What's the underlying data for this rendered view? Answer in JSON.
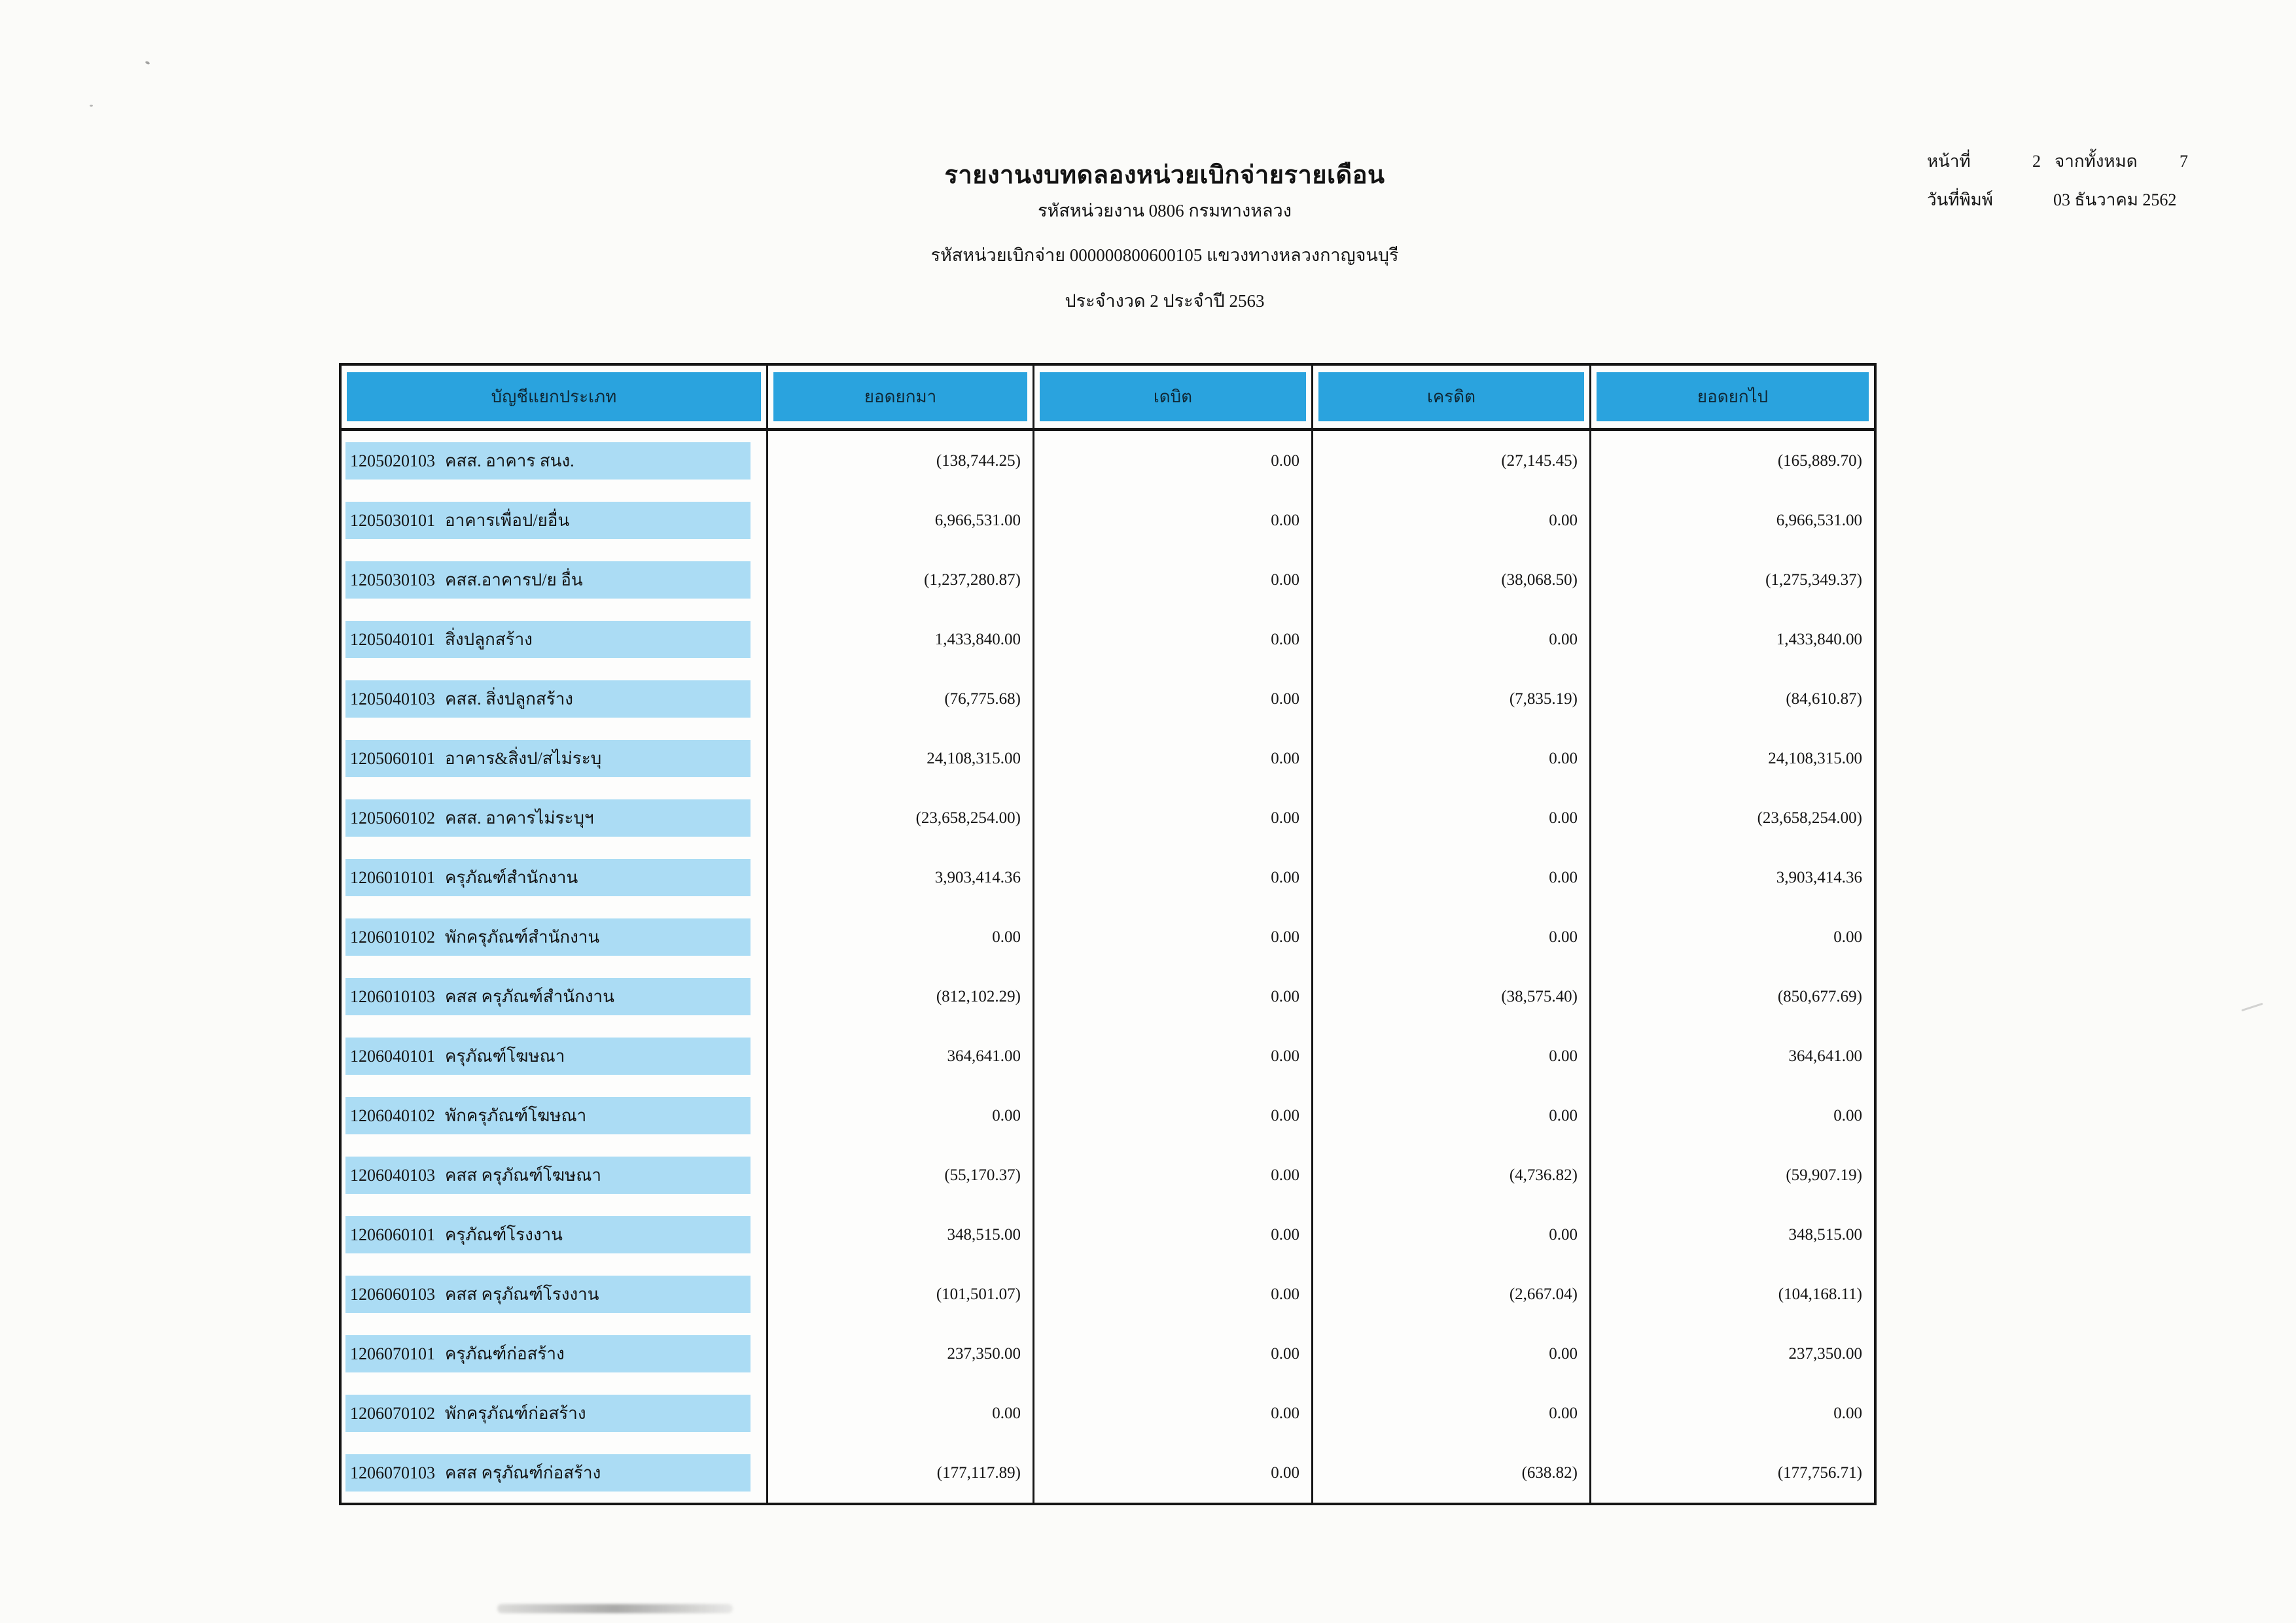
{
  "page": {
    "title": "รายงานงบทดลองหน่วยเบิกจ่ายรายเดือน",
    "agency_line": "รหัสหน่วยงาน 0806 กรมทางหลวง",
    "unit_line": "รหัสหน่วยเบิกจ่าย 000000800600105 แขวงทางหลวงกาญจนบุรี",
    "period_line": "ประจำงวด 2 ประจำปี 2563"
  },
  "meta": {
    "page_label": "หน้าที่",
    "page_number": "2",
    "of_label": "จากทั้งหมด",
    "total_pages": "7",
    "print_date_label": "วันที่พิมพ์",
    "print_date": "03 ธันวาคม 2562"
  },
  "table": {
    "columns": [
      "บัญชีแยกประเภท",
      "ยอดยกมา",
      "เดบิต",
      "เครดิต",
      "ยอดยกไป"
    ],
    "rows": [
      {
        "code": "1205020103",
        "name": "คสส. อาคาร สนง.",
        "opening": "(138,744.25)",
        "debit": "0.00",
        "credit": "(27,145.45)",
        "closing": "(165,889.70)"
      },
      {
        "code": "1205030101",
        "name": "อาคารเพื่อป/ยอื่น",
        "opening": "6,966,531.00",
        "debit": "0.00",
        "credit": "0.00",
        "closing": "6,966,531.00"
      },
      {
        "code": "1205030103",
        "name": "คสส.อาคารป/ย อื่น",
        "opening": "(1,237,280.87)",
        "debit": "0.00",
        "credit": "(38,068.50)",
        "closing": "(1,275,349.37)"
      },
      {
        "code": "1205040101",
        "name": "สิ่งปลูกสร้าง",
        "opening": "1,433,840.00",
        "debit": "0.00",
        "credit": "0.00",
        "closing": "1,433,840.00"
      },
      {
        "code": "1205040103",
        "name": "คสส. สิ่งปลูกสร้าง",
        "opening": "(76,775.68)",
        "debit": "0.00",
        "credit": "(7,835.19)",
        "closing": "(84,610.87)"
      },
      {
        "code": "1205060101",
        "name": "อาคาร&สิ่งป/สไม่ระบุ",
        "opening": "24,108,315.00",
        "debit": "0.00",
        "credit": "0.00",
        "closing": "24,108,315.00"
      },
      {
        "code": "1205060102",
        "name": "คสส. อาคารไม่ระบุฯ",
        "opening": "(23,658,254.00)",
        "debit": "0.00",
        "credit": "0.00",
        "closing": "(23,658,254.00)"
      },
      {
        "code": "1206010101",
        "name": "ครุภัณฑ์สำนักงาน",
        "opening": "3,903,414.36",
        "debit": "0.00",
        "credit": "0.00",
        "closing": "3,903,414.36"
      },
      {
        "code": "1206010102",
        "name": "พักครุภัณฑ์สำนักงาน",
        "opening": "0.00",
        "debit": "0.00",
        "credit": "0.00",
        "closing": "0.00"
      },
      {
        "code": "1206010103",
        "name": "คสส ครุภัณฑ์สำนักงาน",
        "opening": "(812,102.29)",
        "debit": "0.00",
        "credit": "(38,575.40)",
        "closing": "(850,677.69)"
      },
      {
        "code": "1206040101",
        "name": "ครุภัณฑ์โฆษณา",
        "opening": "364,641.00",
        "debit": "0.00",
        "credit": "0.00",
        "closing": "364,641.00"
      },
      {
        "code": "1206040102",
        "name": "พักครุภัณฑ์โฆษณา",
        "opening": "0.00",
        "debit": "0.00",
        "credit": "0.00",
        "closing": "0.00"
      },
      {
        "code": "1206040103",
        "name": "คสส ครุภัณฑ์โฆษณา",
        "opening": "(55,170.37)",
        "debit": "0.00",
        "credit": "(4,736.82)",
        "closing": "(59,907.19)"
      },
      {
        "code": "1206060101",
        "name": "ครุภัณฑ์โรงงาน",
        "opening": "348,515.00",
        "debit": "0.00",
        "credit": "0.00",
        "closing": "348,515.00"
      },
      {
        "code": "1206060103",
        "name": "คสส ครุภัณฑ์โรงงาน",
        "opening": "(101,501.07)",
        "debit": "0.00",
        "credit": "(2,667.04)",
        "closing": "(104,168.11)"
      },
      {
        "code": "1206070101",
        "name": "ครุภัณฑ์ก่อสร้าง",
        "opening": "237,350.00",
        "debit": "0.00",
        "credit": "0.00",
        "closing": "237,350.00"
      },
      {
        "code": "1206070102",
        "name": "พักครุภัณฑ์ก่อสร้าง",
        "opening": "0.00",
        "debit": "0.00",
        "credit": "0.00",
        "closing": "0.00"
      },
      {
        "code": "1206070103",
        "name": "คสส ครุภัณฑ์ก่อสร้าง",
        "opening": "(177,117.89)",
        "debit": "0.00",
        "credit": "(638.82)",
        "closing": "(177,756.71)"
      }
    ]
  },
  "colors": {
    "header_blue": "#2aa3de",
    "band_blue": "#abdcf4",
    "border_black": "#161616"
  }
}
